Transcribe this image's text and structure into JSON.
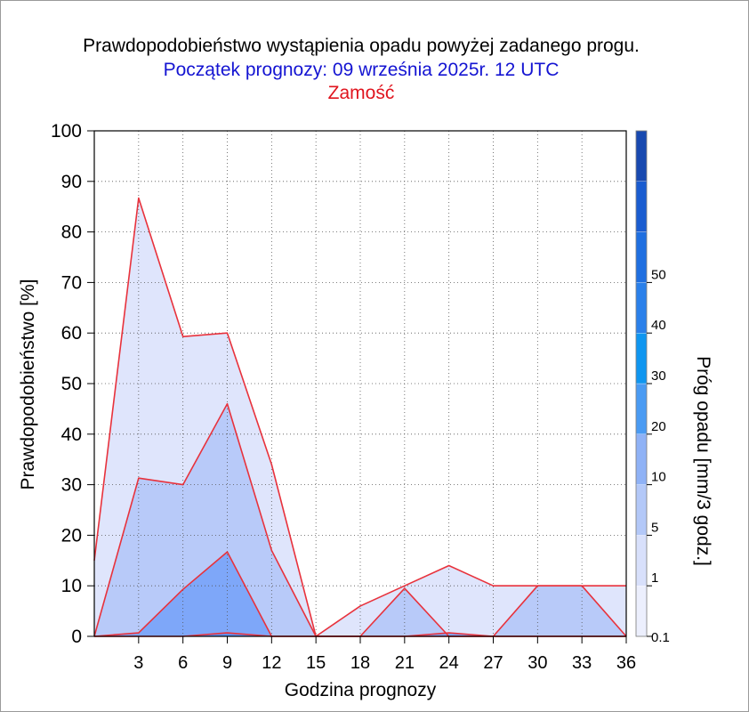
{
  "title": "Prawdopodobieństwo wystąpienia opadu powyżej zadanego progu.",
  "subtitle": "Początek prognozy: 09 września 2025r. 12 UTC",
  "location": "Zamość",
  "chart_data": {
    "type": "area",
    "xlabel": "Godzina prognozy",
    "ylabel": "Prawdopodobieństwo [%]",
    "xlim": [
      0,
      36
    ],
    "ylim": [
      0,
      100
    ],
    "x_ticks": [
      3,
      6,
      9,
      12,
      15,
      18,
      21,
      24,
      27,
      30,
      33,
      36
    ],
    "y_ticks": [
      0,
      10,
      20,
      30,
      40,
      50,
      60,
      70,
      80,
      90,
      100
    ],
    "grid": true,
    "x": [
      0,
      3,
      6,
      9,
      12,
      15,
      18,
      21,
      24,
      27,
      30,
      33,
      36
    ],
    "series": [
      {
        "threshold": 0.1,
        "color": "#dfe5fc",
        "values": [
          15,
          86.7,
          59.3,
          60,
          34,
          0,
          6,
          10,
          14,
          10,
          10,
          10,
          10
        ]
      },
      {
        "threshold": 1,
        "color": "#b8caf9",
        "values": [
          0,
          31.3,
          30,
          46,
          17,
          0,
          0,
          9.5,
          0,
          0,
          10,
          10,
          0
        ]
      },
      {
        "threshold": 5,
        "color": "#7ea7f9",
        "values": [
          0,
          0.7,
          9.3,
          16.7,
          0,
          0,
          0,
          0,
          0.7,
          0,
          0,
          0,
          0
        ]
      },
      {
        "threshold": 10,
        "color": "#5f92f3",
        "values": [
          0,
          0,
          0,
          0.7,
          0,
          0,
          0,
          0,
          0,
          0,
          0,
          0,
          0
        ]
      }
    ],
    "colorbar": {
      "label": "Próg opadu [mm/3 godz.]",
      "tick_labels": [
        "0.1",
        "1",
        "5",
        "10",
        "20",
        "30",
        "40",
        "50"
      ],
      "colors": [
        "#eceffd",
        "#d8e0fb",
        "#b3c8f8",
        "#8fb2f6",
        "#4a9bf3",
        "#0f96f0",
        "#2a80ea",
        "#1f6fe0",
        "#1a5cd0",
        "#1849b0"
      ]
    }
  }
}
